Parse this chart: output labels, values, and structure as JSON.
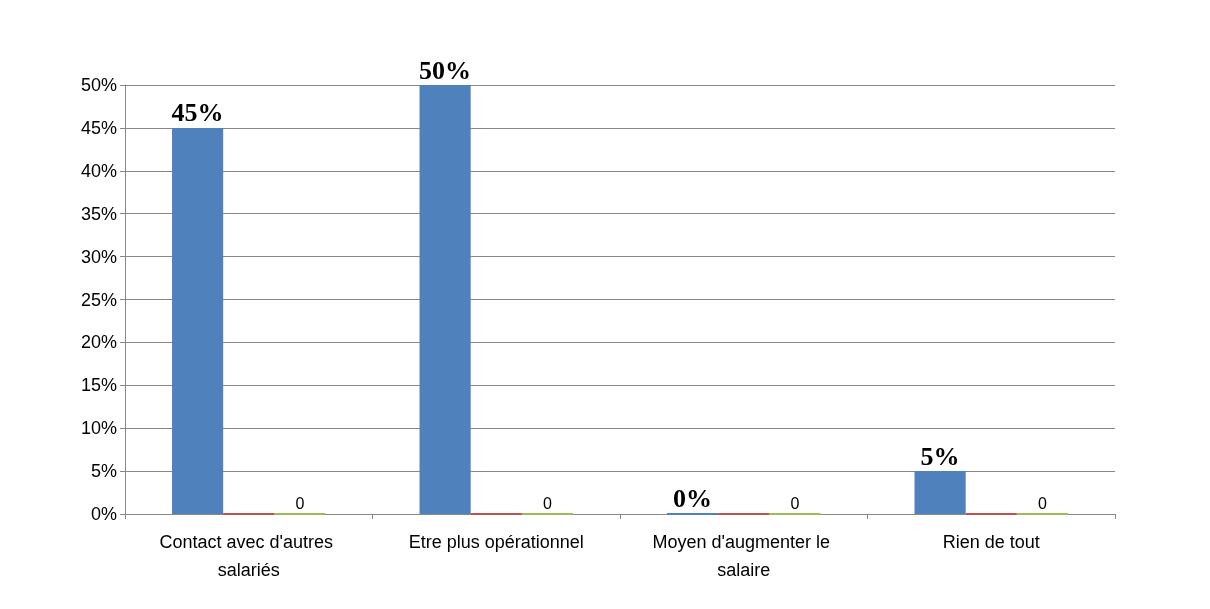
{
  "chart_data": {
    "type": "bar",
    "categories": [
      "Contact avec d'autres salariés",
      "Etre plus opérationnel",
      "Moyen d'augmenter le salaire",
      "Rien de tout"
    ],
    "series": [
      {
        "color": "#4f81bd",
        "values": [
          45,
          50,
          0,
          5
        ],
        "value_labels": [
          "45%",
          "50%",
          "0%",
          "5%"
        ]
      },
      {
        "color": "#c0504d",
        "values": [
          0,
          0,
          0,
          0
        ]
      },
      {
        "color": "#9bbb59",
        "values": [
          0,
          0,
          0,
          0
        ],
        "value_labels": [
          "0",
          "0",
          "0",
          "0"
        ]
      }
    ],
    "ylim": [
      0,
      50
    ],
    "yticks": [
      {
        "value": 0,
        "label": "0%"
      },
      {
        "value": 5,
        "label": "5%"
      },
      {
        "value": 10,
        "label": "10%"
      },
      {
        "value": 15,
        "label": "15%"
      },
      {
        "value": 20,
        "label": "20%"
      },
      {
        "value": 25,
        "label": "25%"
      },
      {
        "value": 30,
        "label": "30%"
      },
      {
        "value": 35,
        "label": "35%"
      },
      {
        "value": 40,
        "label": "40%"
      },
      {
        "value": 45,
        "label": "45%"
      },
      {
        "value": 50,
        "label": "50%"
      }
    ],
    "grid": "y"
  }
}
